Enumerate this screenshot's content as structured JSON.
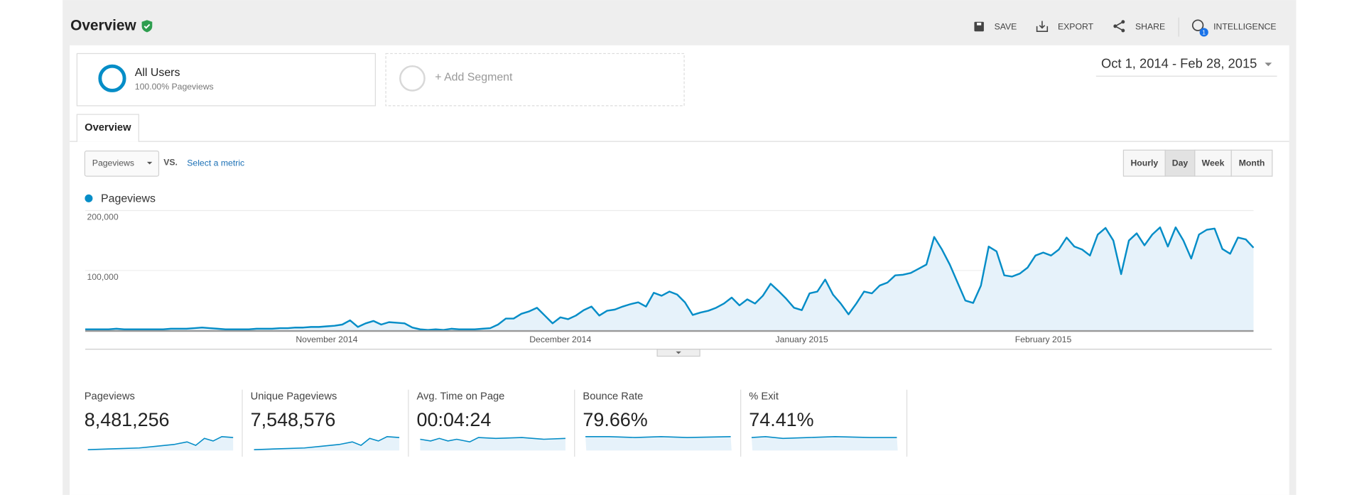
{
  "header": {
    "title": "Overview",
    "actions": [
      "SAVE",
      "EXPORT",
      "SHARE",
      "INTELLIGENCE"
    ],
    "badge": "1"
  },
  "segments": {
    "active": {
      "name": "All Users",
      "detail": "100.00% Pageviews"
    },
    "add": "+ Add Segment"
  },
  "date_range": "Oct 1, 2014 - Feb 28, 2015",
  "tab": "Overview",
  "metric_select": {
    "metric": "Pageviews",
    "vs": "VS.",
    "link": "Select a metric"
  },
  "granularity": {
    "options": [
      "Hourly",
      "Day",
      "Week",
      "Month"
    ],
    "selected": "Day"
  },
  "chart_data": {
    "type": "line",
    "categories": [
      null,
      null,
      null,
      null,
      null,
      null,
      null,
      null,
      null,
      null,
      null,
      null,
      null,
      null,
      null,
      null,
      null,
      null,
      null,
      null,
      null,
      null,
      null,
      null,
      null,
      null,
      null,
      null,
      null,
      null,
      null,
      "November 2014",
      null,
      null,
      null,
      null,
      null,
      null,
      null,
      null,
      null,
      null,
      null,
      null,
      null,
      null,
      null,
      null,
      null,
      null,
      null,
      null,
      null,
      null,
      null,
      null,
      null,
      null,
      null,
      null,
      null,
      "December 2014",
      null,
      null,
      null,
      null,
      null,
      null,
      null,
      null,
      null,
      null,
      null,
      null,
      null,
      null,
      null,
      null,
      null,
      null,
      null,
      null,
      null,
      null,
      null,
      null,
      null,
      null,
      null,
      null,
      null,
      null,
      "January 2015",
      null,
      null,
      null,
      null,
      null,
      null,
      null,
      null,
      null,
      null,
      null,
      null,
      null,
      null,
      null,
      null,
      null,
      null,
      null,
      null,
      null,
      null,
      null,
      null,
      null,
      null,
      null,
      null,
      null,
      null,
      "February 2015",
      null,
      null,
      null,
      null,
      null,
      null,
      null,
      null,
      null,
      null,
      null,
      null,
      null,
      null,
      null,
      null,
      null,
      null,
      null,
      null,
      null,
      null,
      null,
      null,
      null,
      null,
      null
    ],
    "series": [
      {
        "name": "Pageviews",
        "color": "#058dc7",
        "fill": "#e6f2fa",
        "values": [
          2000,
          2000,
          2000,
          2000,
          3000,
          2000,
          2000,
          2000,
          2000,
          2000,
          2000,
          3000,
          3000,
          3000,
          4000,
          5000,
          4000,
          3000,
          2000,
          2000,
          2000,
          2000,
          3000,
          3000,
          3000,
          4000,
          4000,
          5000,
          5000,
          6000,
          6000,
          7000,
          8000,
          10000,
          17000,
          6000,
          12000,
          16000,
          10000,
          14000,
          13000,
          12000,
          5000,
          2000,
          1000,
          2000,
          1000,
          3000,
          2000,
          2000,
          2000,
          3000,
          4000,
          10000,
          20000,
          20000,
          28000,
          32000,
          38000,
          25000,
          12000,
          22000,
          19000,
          25000,
          34000,
          40000,
          25000,
          33000,
          35000,
          40000,
          44000,
          47000,
          40000,
          63000,
          58000,
          65000,
          60000,
          47000,
          26000,
          30000,
          33000,
          38000,
          45000,
          55000,
          42000,
          52000,
          45000,
          58000,
          78000,
          66000,
          53000,
          38000,
          34000,
          62000,
          65000,
          85000,
          60000,
          45000,
          27000,
          45000,
          65000,
          62000,
          75000,
          80000,
          92000,
          93000,
          96000,
          103000,
          110000,
          156000,
          135000,
          110000,
          80000,
          50000,
          46000,
          75000,
          140000,
          132000,
          92000,
          90000,
          95000,
          105000,
          125000,
          130000,
          125000,
          135000,
          155000,
          140000,
          135000,
          125000,
          160000,
          171000,
          150000,
          94000,
          150000,
          162000,
          142000,
          160000,
          172000,
          140000,
          172000,
          150000,
          120000,
          160000,
          168000,
          170000,
          136000,
          128000,
          155000,
          152000,
          138000
        ]
      }
    ],
    "ylim": [
      0,
      200000
    ],
    "yticks": [
      {
        "value": 100000,
        "label": "100,000"
      },
      {
        "value": 200000,
        "label": "200,000"
      }
    ],
    "grid": true
  },
  "scorecards": [
    {
      "label": "Pageviews",
      "value": "8,481,256"
    },
    {
      "label": "Unique Pageviews",
      "value": "7,548,576"
    },
    {
      "label": "Avg. Time on Page",
      "value": "00:04:24"
    },
    {
      "label": "Bounce Rate",
      "value": "79.66%"
    },
    {
      "label": "% Exit",
      "value": "74.41%"
    }
  ]
}
